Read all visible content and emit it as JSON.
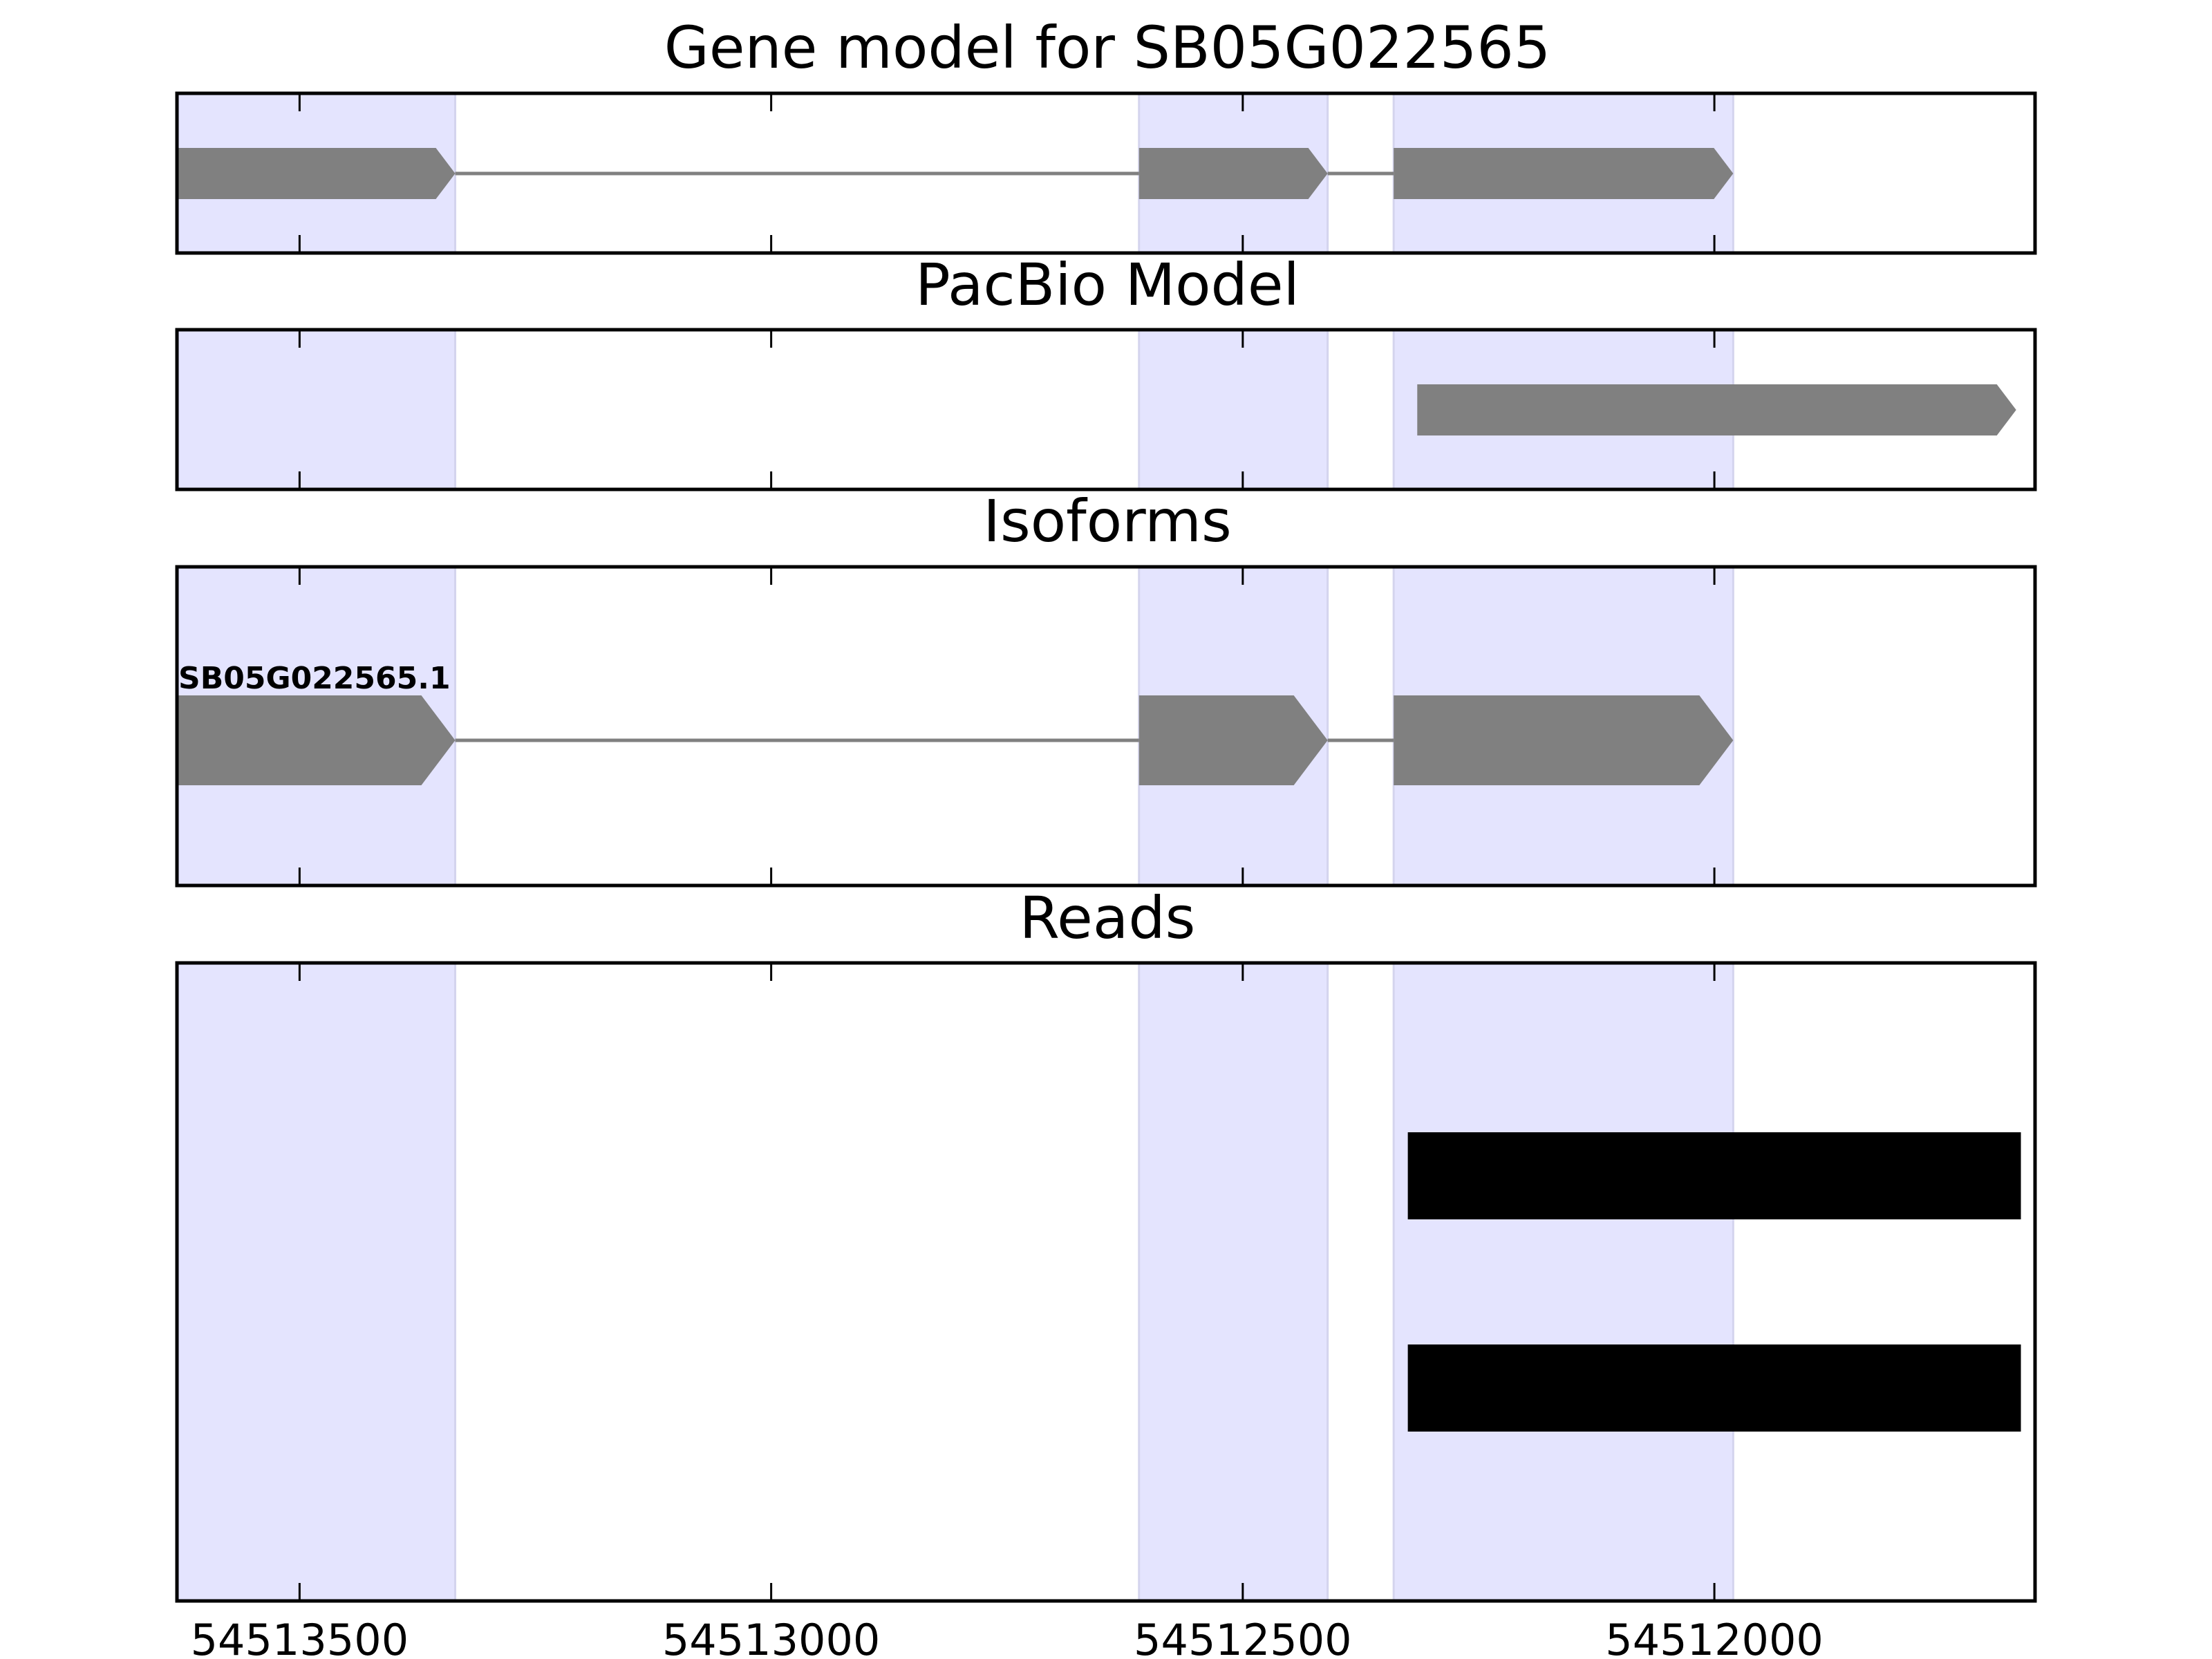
{
  "chart_data": [
    {
      "type": "gene_track",
      "title": "Gene model for SB05G022565",
      "xlim": [
        54513630,
        54511660
      ],
      "highlight_regions": [
        [
          54513630,
          54513335
        ],
        [
          54512610,
          54512410
        ],
        [
          54512340,
          54511980
        ]
      ],
      "features": [
        {
          "kind": "gene",
          "exons": [
            [
              54513630,
              54513335
            ],
            [
              54512610,
              54512410
            ],
            [
              54512340,
              54511980
            ]
          ]
        }
      ]
    },
    {
      "type": "gene_track",
      "title": "PacBio Model",
      "xlim": [
        54513630,
        54511660
      ],
      "highlight_regions": [
        [
          54513630,
          54513335
        ],
        [
          54512610,
          54512410
        ],
        [
          54512340,
          54511980
        ]
      ],
      "features": [
        {
          "kind": "gene",
          "exons": [
            [
              54512315,
              54511680
            ]
          ]
        }
      ]
    },
    {
      "type": "gene_track",
      "title": "Isoforms",
      "xlim": [
        54513630,
        54511660
      ],
      "highlight_regions": [
        [
          54513630,
          54513335
        ],
        [
          54512610,
          54512410
        ],
        [
          54512340,
          54511980
        ]
      ],
      "features": [
        {
          "kind": "gene",
          "label": "SB05G022565.1",
          "exons": [
            [
              54513630,
              54513335
            ],
            [
              54512610,
              54512410
            ],
            [
              54512340,
              54511980
            ]
          ]
        }
      ]
    },
    {
      "type": "bar",
      "title": "Reads",
      "xlim": [
        54513630,
        54511660
      ],
      "xticks": [
        54513500,
        54513000,
        54512500,
        54512000
      ],
      "xtick_labels": [
        "54513500",
        "54513000",
        "54512500",
        "54512000"
      ],
      "highlight_regions": [
        [
          54513630,
          54513335
        ],
        [
          54512610,
          54512410
        ],
        [
          54512340,
          54511980
        ]
      ],
      "features": [
        {
          "kind": "read",
          "start": 54512325,
          "end": 54511675
        },
        {
          "kind": "read",
          "start": 54512325,
          "end": 54511675
        }
      ]
    }
  ],
  "colors": {
    "highlight": "#e4e4fe",
    "gene": "#808080",
    "read": "#000000",
    "axis": "#000000"
  }
}
